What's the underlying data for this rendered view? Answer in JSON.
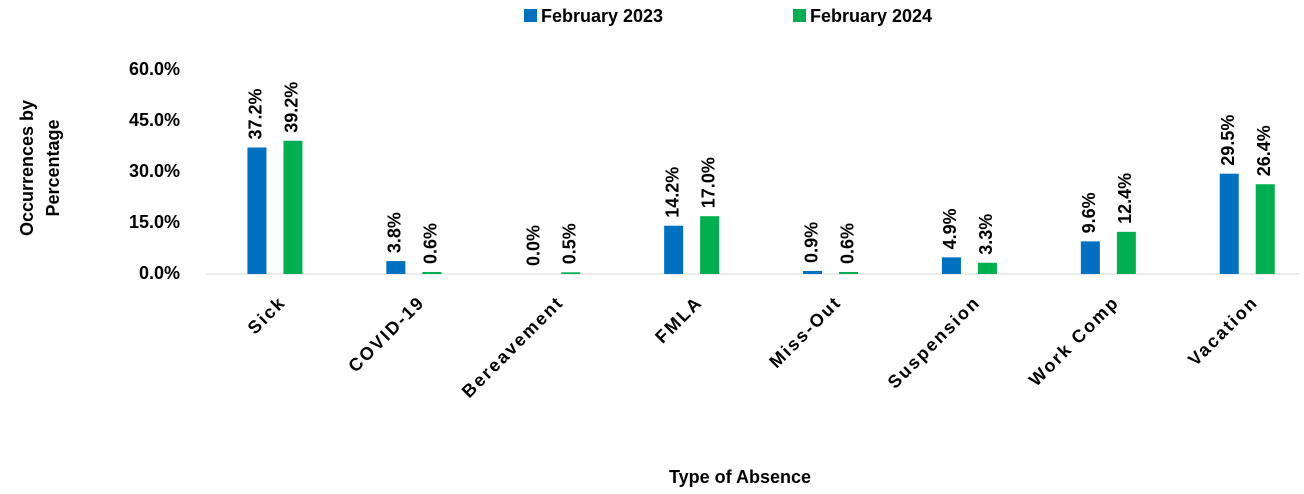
{
  "chart_data": {
    "type": "bar",
    "categories": [
      "Sick",
      "COVID-19",
      "Bereavement",
      "FMLA",
      "Miss-Out",
      "Suspension",
      "Work Comp",
      "Vacation"
    ],
    "series": [
      {
        "name": "February 2023",
        "color": "#0070c0",
        "values": [
          37.2,
          3.8,
          0.0,
          14.2,
          0.9,
          4.9,
          9.6,
          29.5
        ],
        "value_labels": [
          "37.2%",
          "3.8%",
          "0.0%",
          "14.2%",
          "0.9%",
          "4.9%",
          "9.6%",
          "29.5%"
        ]
      },
      {
        "name": "February 2024",
        "color": "#00b050",
        "values": [
          39.2,
          0.6,
          0.5,
          17.0,
          0.6,
          3.3,
          12.4,
          26.4
        ],
        "value_labels": [
          "39.2%",
          "0.6%",
          "0.5%",
          "17.0%",
          "0.6%",
          "3.3%",
          "12.4%",
          "26.4%"
        ]
      }
    ],
    "x_label": "Type of Absence",
    "y_label": "Occurrences by Percentage",
    "ylim": [
      0,
      60
    ],
    "yticks": [
      {
        "value": 0,
        "label": "0.0%"
      },
      {
        "value": 15,
        "label": "15.0%"
      },
      {
        "value": 30,
        "label": "30.0%"
      },
      {
        "value": 45,
        "label": "45.0%"
      },
      {
        "value": 60,
        "label": "60.0%"
      }
    ],
    "legend": "top",
    "grid": false
  }
}
